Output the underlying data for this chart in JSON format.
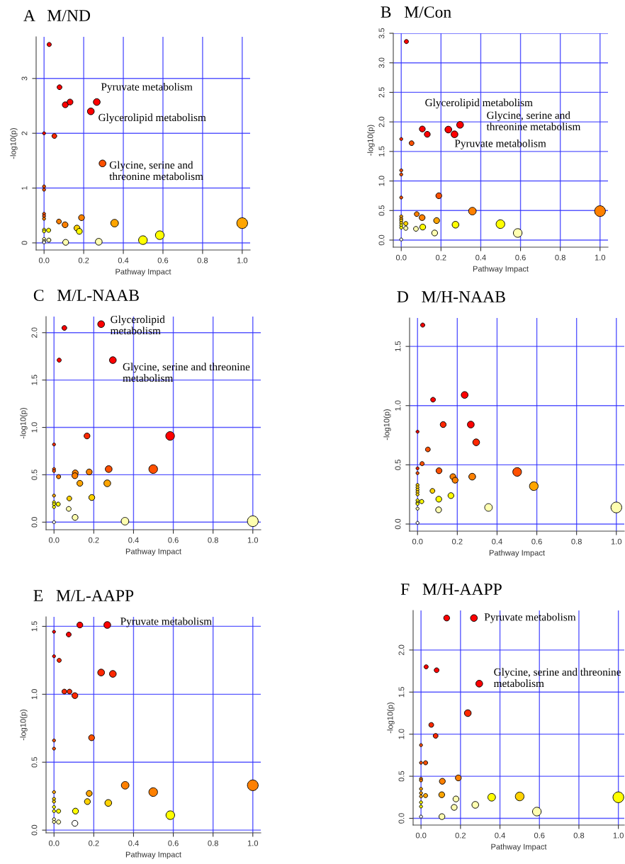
{
  "chart_data": [
    {
      "type": "bubble",
      "title": "A   M/ND",
      "xlabel": "Pathway Impact",
      "ylabel": "-log10(p)",
      "xlim": [
        -0.04,
        1.04
      ],
      "ylim": [
        -0.13,
        3.76
      ],
      "xticks": [
        {
          "value": 0,
          "label": "0.0"
        },
        {
          "value": 0.2,
          "label": "0.2"
        },
        {
          "value": 0.4,
          "label": "0.4"
        },
        {
          "value": 0.6,
          "label": "0.6"
        },
        {
          "value": 0.8,
          "label": "0.8"
        },
        {
          "value": 1,
          "label": "1.0"
        }
      ],
      "yticks": [
        0,
        1,
        2,
        3
      ],
      "grid": true,
      "marker": "circle",
      "series": [
        {
          "x": [
            0.026,
            0.078,
            0.107,
            0.131,
            0.266,
            0.236,
            0,
            0.052,
            0.295,
            0,
            0,
            0,
            0,
            0,
            0.075,
            0.106,
            0.189,
            0.356,
            1.0,
            0.166,
            0.178,
            0,
            0,
            0.023,
            0,
            0,
            0.024,
            0.109,
            0.276,
            0.499,
            0.584,
            0
          ],
          "values": [
            3.62,
            2.84,
            2.52,
            2.57,
            2.57,
            2.4,
            2.0,
            1.95,
            1.45,
            1.03,
            0.97,
            0.53,
            0.49,
            0.44,
            0.39,
            0.33,
            0.46,
            0.36,
            0.36,
            0.27,
            0.21,
            0.24,
            0.21,
            0.23,
            0.07,
            0.03,
            0.05,
            0.01,
            0.02,
            0.05,
            0.14,
            0.01
          ],
          "sizes": [
            0.15,
            0.2,
            0.3,
            0.3,
            0.4,
            0.4,
            0.08,
            0.2,
            0.4,
            0.08,
            0.08,
            0.08,
            0.08,
            0.08,
            0.2,
            0.3,
            0.3,
            0.5,
            1,
            0.3,
            0.3,
            0.08,
            0.08,
            0.15,
            0.08,
            0.08,
            0.15,
            0.3,
            0.4,
            0.65,
            0.65,
            0.08
          ],
          "colors": [
            "#ff0000",
            "#ff0000",
            "#ff0000",
            "#ff0000",
            "#ff0000",
            "#ff0000",
            "#ff0000",
            "#ff2800",
            "#ff5000",
            "#ff5000",
            "#ff5000",
            "#ff5000",
            "#ff5000",
            "#ff8000",
            "#ff8000",
            "#ff8000",
            "#ff8000",
            "#ffa500",
            "#ffa500",
            "#ffd200",
            "#ffff00",
            "#ffff00",
            "#ffff00",
            "#ffff00",
            "#ffffb0",
            "#ffffb0",
            "#ffffb0",
            "#ffffb0",
            "#ffffb0",
            "#ffff00",
            "#ffff00",
            "#ffffff"
          ]
        }
      ],
      "annotations": [
        {
          "text": "Pyruvate metabolism",
          "x": 0.266,
          "y": 2.57
        },
        {
          "text": "Glycerolipid metabolism",
          "x": 0.236,
          "y": 2.4
        },
        {
          "text": "Glycine, serine and\nthreonine metabolism",
          "x": 0.295,
          "y": 1.45
        }
      ]
    },
    {
      "type": "bubble",
      "title": "B   M/Con",
      "xlabel": "Pathway Impact",
      "ylabel": "-log10(p)",
      "xlim": [
        -0.04,
        1.04
      ],
      "ylim": [
        -0.12,
        3.5
      ],
      "xticks": [
        {
          "value": 0,
          "label": "0.0"
        },
        {
          "value": 0.2,
          "label": "0.2"
        },
        {
          "value": 0.4,
          "label": "0.4"
        },
        {
          "value": 0.6,
          "label": "0.6"
        },
        {
          "value": 0.8,
          "label": "0.8"
        },
        {
          "value": 1,
          "label": "1.0"
        }
      ],
      "yticks": [
        {
          "value": 0,
          "label": "0.0"
        },
        {
          "value": 0.5,
          "label": "0.5"
        },
        {
          "value": 1,
          "label": "1.0"
        },
        {
          "value": 1.5,
          "label": "1.5"
        },
        {
          "value": 2,
          "label": "2.0"
        },
        {
          "value": 2.5,
          "label": "2.5"
        },
        {
          "value": 3,
          "label": "3.0"
        },
        {
          "value": 3.5,
          "label": "3.5"
        }
      ],
      "grid": true,
      "marker": "circle",
      "series": [
        {
          "x": [
            0.026,
            0,
            0.052,
            0.106,
            0.131,
            0.237,
            0.268,
            0.296,
            0,
            0,
            0,
            0.189,
            0.358,
            1.0,
            0.078,
            0.105,
            0.178,
            0,
            0,
            0,
            0,
            0,
            0,
            0.023,
            0.023,
            0.074,
            0.108,
            0.168,
            0.273,
            0.499,
            0.586,
            0
          ],
          "values": [
            3.36,
            1.71,
            1.64,
            1.88,
            1.79,
            1.87,
            1.79,
            1.95,
            1.18,
            1.11,
            0.72,
            0.75,
            0.49,
            0.49,
            0.44,
            0.38,
            0.33,
            0.4,
            0.36,
            0.33,
            0.29,
            0.25,
            0.21,
            0.28,
            0.2,
            0.19,
            0.22,
            0.12,
            0.26,
            0.27,
            0.12,
            0.01
          ],
          "sizes": [
            0.15,
            0.08,
            0.2,
            0.3,
            0.3,
            0.4,
            0.4,
            0.4,
            0.08,
            0.08,
            0.08,
            0.3,
            0.5,
            1,
            0.2,
            0.3,
            0.3,
            0.08,
            0.08,
            0.08,
            0.08,
            0.08,
            0.08,
            0.15,
            0.15,
            0.2,
            0.3,
            0.3,
            0.4,
            0.65,
            0.65,
            0.08
          ],
          "colors": [
            "#ff0000",
            "#ff2800",
            "#ff5000",
            "#ff0000",
            "#ff0000",
            "#ff0000",
            "#ff0000",
            "#ff0000",
            "#ff5000",
            "#ff5000",
            "#ff5000",
            "#ff5000",
            "#ff8000",
            "#ff8000",
            "#ff8000",
            "#ff8000",
            "#ffa500",
            "#ffa500",
            "#ffa500",
            "#ffd200",
            "#ffd200",
            "#ffff00",
            "#ffff00",
            "#ffd200",
            "#ffffb0",
            "#ffffb0",
            "#ffff00",
            "#ffffb0",
            "#ffff00",
            "#ffff00",
            "#ffffb0",
            "#ffffff"
          ]
        }
      ],
      "annotations": [
        {
          "text": "Glycerolipid metabolism",
          "x": 0.237,
          "y": 1.87
        },
        {
          "text": "Glycine, serine and\nthreonine metabolism",
          "x": 0.296,
          "y": 1.95
        },
        {
          "text": "Pyruvate metabolism",
          "x": 0.268,
          "y": 1.79
        }
      ]
    },
    {
      "type": "bubble",
      "title": "C   M/L-NAAB",
      "xlabel": "Pathway Impact",
      "ylabel": "-log10(p)",
      "xlim": [
        -0.04,
        1.04
      ],
      "ylim": [
        -0.08,
        2.17
      ],
      "xticks": [
        {
          "value": 0,
          "label": "0.0"
        },
        {
          "value": 0.2,
          "label": "0.2"
        },
        {
          "value": 0.4,
          "label": "0.4"
        },
        {
          "value": 0.6,
          "label": "0.6"
        },
        {
          "value": 0.8,
          "label": "0.8"
        },
        {
          "value": 1,
          "label": "1.0"
        }
      ],
      "yticks": [
        {
          "value": 0,
          "label": "0.0"
        },
        {
          "value": 0.5,
          "label": "0.5"
        },
        {
          "value": 1,
          "label": "1.0"
        },
        {
          "value": 1.5,
          "label": "1.5"
        },
        {
          "value": 2,
          "label": "2.0"
        }
      ],
      "grid": true,
      "marker": "circle",
      "series": [
        {
          "x": [
            0.052,
            0.237,
            0.026,
            0.296,
            0.166,
            0.584,
            0,
            0,
            0,
            0.023,
            0.107,
            0.105,
            0.177,
            0.275,
            0.499,
            0.13,
            0.268,
            0,
            0.077,
            0.19,
            0,
            0,
            0,
            0.021,
            0.074,
            0.106,
            0.357,
            1.0,
            0
          ],
          "values": [
            2.05,
            2.09,
            1.71,
            1.71,
            0.91,
            0.91,
            0.82,
            0.56,
            0.54,
            0.48,
            0.52,
            0.49,
            0.53,
            0.56,
            0.56,
            0.41,
            0.41,
            0.28,
            0.25,
            0.26,
            0.21,
            0.19,
            0.16,
            0.19,
            0.14,
            0.05,
            0.01,
            0.01,
            0.0
          ],
          "sizes": [
            0.2,
            0.4,
            0.15,
            0.4,
            0.3,
            0.65,
            0.08,
            0.08,
            0.08,
            0.15,
            0.3,
            0.3,
            0.3,
            0.4,
            0.65,
            0.3,
            0.4,
            0.08,
            0.2,
            0.3,
            0.08,
            0.08,
            0.08,
            0.15,
            0.2,
            0.3,
            0.5,
            1,
            0.08
          ],
          "colors": [
            "#ff0000",
            "#ff0000",
            "#ff0000",
            "#ff0000",
            "#ff2800",
            "#ff0000",
            "#ff2800",
            "#ff5000",
            "#ff5000",
            "#ff8000",
            "#ff8000",
            "#ff8000",
            "#ff8000",
            "#ff5000",
            "#ff5000",
            "#ffa500",
            "#ffa500",
            "#ffa500",
            "#ffd200",
            "#ffd200",
            "#ffff00",
            "#ffff00",
            "#ffff00",
            "#ffff00",
            "#ffffb0",
            "#ffffb0",
            "#ffffb0",
            "#ffffb0",
            "#ffffff"
          ]
        }
      ],
      "annotations": [
        {
          "text": "Glycerolipid\nmetabolism",
          "x": 0.237,
          "y": 2.09
        },
        {
          "text": "Glycine, serine and threonine\nmetabolism",
          "x": 0.296,
          "y": 1.71
        }
      ]
    },
    {
      "type": "bubble",
      "title": "D   M/H-NAAB",
      "xlabel": "Pathway Impact",
      "ylabel": "-log10(p)",
      "xlim": [
        -0.04,
        1.04
      ],
      "ylim": [
        -0.06,
        1.74
      ],
      "xticks": [
        {
          "value": 0,
          "label": "0.0"
        },
        {
          "value": 0.2,
          "label": "0.2"
        },
        {
          "value": 0.4,
          "label": "0.4"
        },
        {
          "value": 0.6,
          "label": "0.6"
        },
        {
          "value": 0.8,
          "label": "0.8"
        },
        {
          "value": 1,
          "label": "1.0"
        }
      ],
      "yticks": [
        {
          "value": 0,
          "label": "0.0"
        },
        {
          "value": 0.5,
          "label": "0.5"
        },
        {
          "value": 1,
          "label": "1.0"
        },
        {
          "value": 1.5,
          "label": "1.5"
        }
      ],
      "grid": true,
      "marker": "circle",
      "series": [
        {
          "x": [
            0.026,
            0.078,
            0.237,
            0.129,
            0.268,
            0.295,
            0,
            0.052,
            0.023,
            0,
            0,
            0.108,
            0.178,
            0.189,
            0.275,
            0.501,
            0.585,
            0,
            0,
            0,
            0,
            0,
            0.075,
            0.107,
            0.168,
            0,
            0,
            0,
            0.021,
            0,
            0.106,
            0.357,
            1.0,
            0
          ],
          "values": [
            1.68,
            1.05,
            1.09,
            0.84,
            0.84,
            0.69,
            0.78,
            0.63,
            0.51,
            0.47,
            0.43,
            0.45,
            0.4,
            0.37,
            0.4,
            0.44,
            0.32,
            0.33,
            0.31,
            0.29,
            0.27,
            0.25,
            0.28,
            0.21,
            0.24,
            0.2,
            0.18,
            0.17,
            0.19,
            0.13,
            0.12,
            0.14,
            0.14,
            0.01
          ],
          "sizes": [
            0.15,
            0.2,
            0.4,
            0.3,
            0.4,
            0.4,
            0.08,
            0.2,
            0.15,
            0.08,
            0.08,
            0.3,
            0.3,
            0.3,
            0.4,
            0.65,
            0.65,
            0.08,
            0.08,
            0.08,
            0.08,
            0.08,
            0.2,
            0.3,
            0.3,
            0.08,
            0.08,
            0.08,
            0.15,
            0.08,
            0.3,
            0.5,
            1,
            0.08
          ],
          "colors": [
            "#ff0000",
            "#ff0000",
            "#ff0000",
            "#ff2800",
            "#ff0000",
            "#ff2800",
            "#ff0000",
            "#ff5000",
            "#ff5000",
            "#ff2800",
            "#ff5000",
            "#ff5000",
            "#ff8000",
            "#ff8000",
            "#ff8000",
            "#ff5000",
            "#ffa500",
            "#ffd200",
            "#ffd200",
            "#ffd200",
            "#ffd200",
            "#ffd200",
            "#ffd200",
            "#ffff00",
            "#ffff00",
            "#ffff00",
            "#ffff00",
            "#ffff00",
            "#ffff00",
            "#ffffb0",
            "#ffffb0",
            "#ffffb0",
            "#ffffb0",
            "#ffffff"
          ]
        }
      ]
    },
    {
      "type": "bubble",
      "title": "E   M/L-AAPP",
      "xlabel": "Pathway Impact",
      "ylabel": "-log10(p)",
      "xlim": [
        -0.04,
        1.04
      ],
      "ylim": [
        -0.02,
        1.57
      ],
      "xticks": [
        {
          "value": 0,
          "label": "0.0"
        },
        {
          "value": 0.2,
          "label": "0.2"
        },
        {
          "value": 0.4,
          "label": "0.4"
        },
        {
          "value": 0.6,
          "label": "0.6"
        },
        {
          "value": 0.8,
          "label": "0.8"
        },
        {
          "value": 1,
          "label": "1.0"
        }
      ],
      "yticks": [
        {
          "value": 0,
          "label": "0.0"
        },
        {
          "value": 0.5,
          "label": "0.5"
        },
        {
          "value": 1,
          "label": "1.0"
        },
        {
          "value": 1.5,
          "label": "1.5"
        }
      ],
      "grid": true,
      "marker": "circle",
      "series": [
        {
          "x": [
            0.13,
            0.268,
            0,
            0.074,
            0,
            0.026,
            0.237,
            0.296,
            0.052,
            0.078,
            0.105,
            0.189,
            0,
            0,
            0.358,
            0.499,
            1.0,
            0.177,
            0,
            0,
            0,
            0.168,
            0.273,
            0,
            0,
            0.023,
            0.108,
            0.585,
            0,
            0,
            0.023,
            0.105
          ],
          "values": [
            1.51,
            1.51,
            1.46,
            1.44,
            1.28,
            1.25,
            1.16,
            1.15,
            1.02,
            1.02,
            0.99,
            0.68,
            0.66,
            0.6,
            0.33,
            0.28,
            0.33,
            0.27,
            0.28,
            0.23,
            0.21,
            0.21,
            0.2,
            0.17,
            0.14,
            0.14,
            0.14,
            0.11,
            0.08,
            0.06,
            0.06,
            0.05
          ],
          "sizes": [
            0.3,
            0.4,
            0.08,
            0.2,
            0.08,
            0.15,
            0.4,
            0.4,
            0.2,
            0.2,
            0.3,
            0.3,
            0.08,
            0.08,
            0.5,
            0.65,
            1,
            0.3,
            0.08,
            0.08,
            0.08,
            0.3,
            0.4,
            0.08,
            0.08,
            0.15,
            0.3,
            0.65,
            0.08,
            0.08,
            0.15,
            0.3
          ],
          "colors": [
            "#ff0000",
            "#ff0000",
            "#ff0000",
            "#ff0000",
            "#ff0000",
            "#ff2800",
            "#ff2800",
            "#ff2800",
            "#ff2800",
            "#ff2800",
            "#ff2800",
            "#ff5000",
            "#ff5000",
            "#ff5000",
            "#ff8000",
            "#ff8000",
            "#ff8000",
            "#ffa500",
            "#ffa500",
            "#ffd200",
            "#ffd200",
            "#ffd200",
            "#ffd200",
            "#ffff00",
            "#ffff00",
            "#ffff00",
            "#ffff00",
            "#ffff00",
            "#ffffb0",
            "#ffffb0",
            "#ffffb0",
            "#ffffff"
          ]
        }
      ],
      "annotations": [
        {
          "text": "Pyruvate metabolism",
          "x": 0.268,
          "y": 1.51
        }
      ]
    },
    {
      "type": "bubble",
      "title": "F   M/H-AAPP",
      "xlabel": "Pathway Impact",
      "ylabel": "-log10(p)",
      "xlim": [
        -0.04,
        1.03
      ],
      "ylim": [
        -0.08,
        2.47
      ],
      "xticks": [
        {
          "value": 0,
          "label": "0.0"
        },
        {
          "value": 0.2,
          "label": "0.2"
        },
        {
          "value": 0.4,
          "label": "0.4"
        },
        {
          "value": 0.6,
          "label": "0.6"
        },
        {
          "value": 0.8,
          "label": "0.8"
        },
        {
          "value": 1,
          "label": "1.0"
        }
      ],
      "yticks": [
        {
          "value": 0,
          "label": "0.0"
        },
        {
          "value": 0.5,
          "label": "0.5"
        },
        {
          "value": 1,
          "label": "1.0"
        },
        {
          "value": 1.5,
          "label": "1.5"
        },
        {
          "value": 2,
          "label": "2.0"
        }
      ],
      "grid": true,
      "marker": "circle",
      "series": [
        {
          "x": [
            0.13,
            0.268,
            0.026,
            0.079,
            0.295,
            0.237,
            0.052,
            0.074,
            0,
            0,
            0.023,
            0.189,
            0,
            0,
            0.108,
            0,
            0,
            0,
            0.023,
            0.105,
            0.177,
            0.358,
            0.5,
            1.0,
            0,
            0,
            0.168,
            0.275,
            0.587,
            0.106,
            0
          ],
          "values": [
            2.38,
            2.38,
            1.8,
            1.76,
            1.6,
            1.25,
            1.11,
            0.98,
            0.87,
            0.66,
            0.66,
            0.48,
            0.47,
            0.45,
            0.44,
            0.35,
            0.3,
            0.26,
            0.27,
            0.28,
            0.23,
            0.25,
            0.26,
            0.25,
            0.19,
            0.14,
            0.13,
            0.16,
            0.08,
            0.02,
            0.02
          ],
          "sizes": [
            0.3,
            0.4,
            0.15,
            0.2,
            0.4,
            0.4,
            0.2,
            0.2,
            0.08,
            0.08,
            0.15,
            0.3,
            0.08,
            0.08,
            0.3,
            0.08,
            0.08,
            0.08,
            0.15,
            0.3,
            0.3,
            0.5,
            0.65,
            1,
            0.08,
            0.08,
            0.3,
            0.4,
            0.65,
            0.3,
            0.08
          ],
          "colors": [
            "#ff0000",
            "#ff0000",
            "#ff0000",
            "#ff0000",
            "#ff0000",
            "#ff2800",
            "#ff2800",
            "#ff2800",
            "#ff5000",
            "#ff5000",
            "#ff5000",
            "#ff8000",
            "#ff8000",
            "#ff8000",
            "#ff8000",
            "#ffa500",
            "#ffa500",
            "#ffa500",
            "#ffa500",
            "#ffa500",
            "#ffffb0",
            "#ffff00",
            "#ffd200",
            "#ffff00",
            "#ffff00",
            "#ffff00",
            "#ffffb0",
            "#ffffb0",
            "#ffffb0",
            "#ffffb0",
            "#ffffff"
          ]
        }
      ],
      "annotations": [
        {
          "text": "Pyruvate metabolism",
          "x": 0.268,
          "y": 2.38
        },
        {
          "text": "Glycine, serine and threonine\nmetabolism",
          "x": 0.295,
          "y": 1.6
        }
      ]
    }
  ]
}
